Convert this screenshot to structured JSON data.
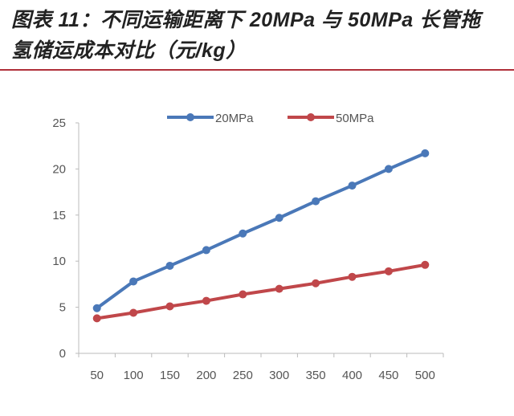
{
  "title_line1": "图表 11：不同运输距离下 20MPa 与 50MPa 长管拖",
  "title_line2": "氢储运成本对比（元/kg）",
  "chart_data": {
    "type": "line",
    "title": "图表 11：不同运输距离下 20MPa 与 50MPa 长管拖氢储运成本对比（元/kg）",
    "xlabel": "",
    "ylabel": "",
    "categories": [
      "50",
      "100",
      "150",
      "200",
      "250",
      "300",
      "350",
      "400",
      "450",
      "500"
    ],
    "ylim": [
      0,
      25
    ],
    "yticks": [
      "0",
      "5",
      "10",
      "15",
      "20",
      "25"
    ],
    "grid": false,
    "legend": "top",
    "series": [
      {
        "name": "20MPa",
        "color": "#4a78b8",
        "values": [
          4.9,
          7.8,
          9.5,
          11.2,
          13.0,
          14.7,
          16.5,
          18.2,
          20.0,
          21.7
        ]
      },
      {
        "name": "50MPa",
        "color": "#c0474a",
        "values": [
          3.8,
          4.4,
          5.1,
          5.7,
          6.4,
          7.0,
          7.6,
          8.3,
          8.9,
          9.6
        ]
      }
    ]
  }
}
